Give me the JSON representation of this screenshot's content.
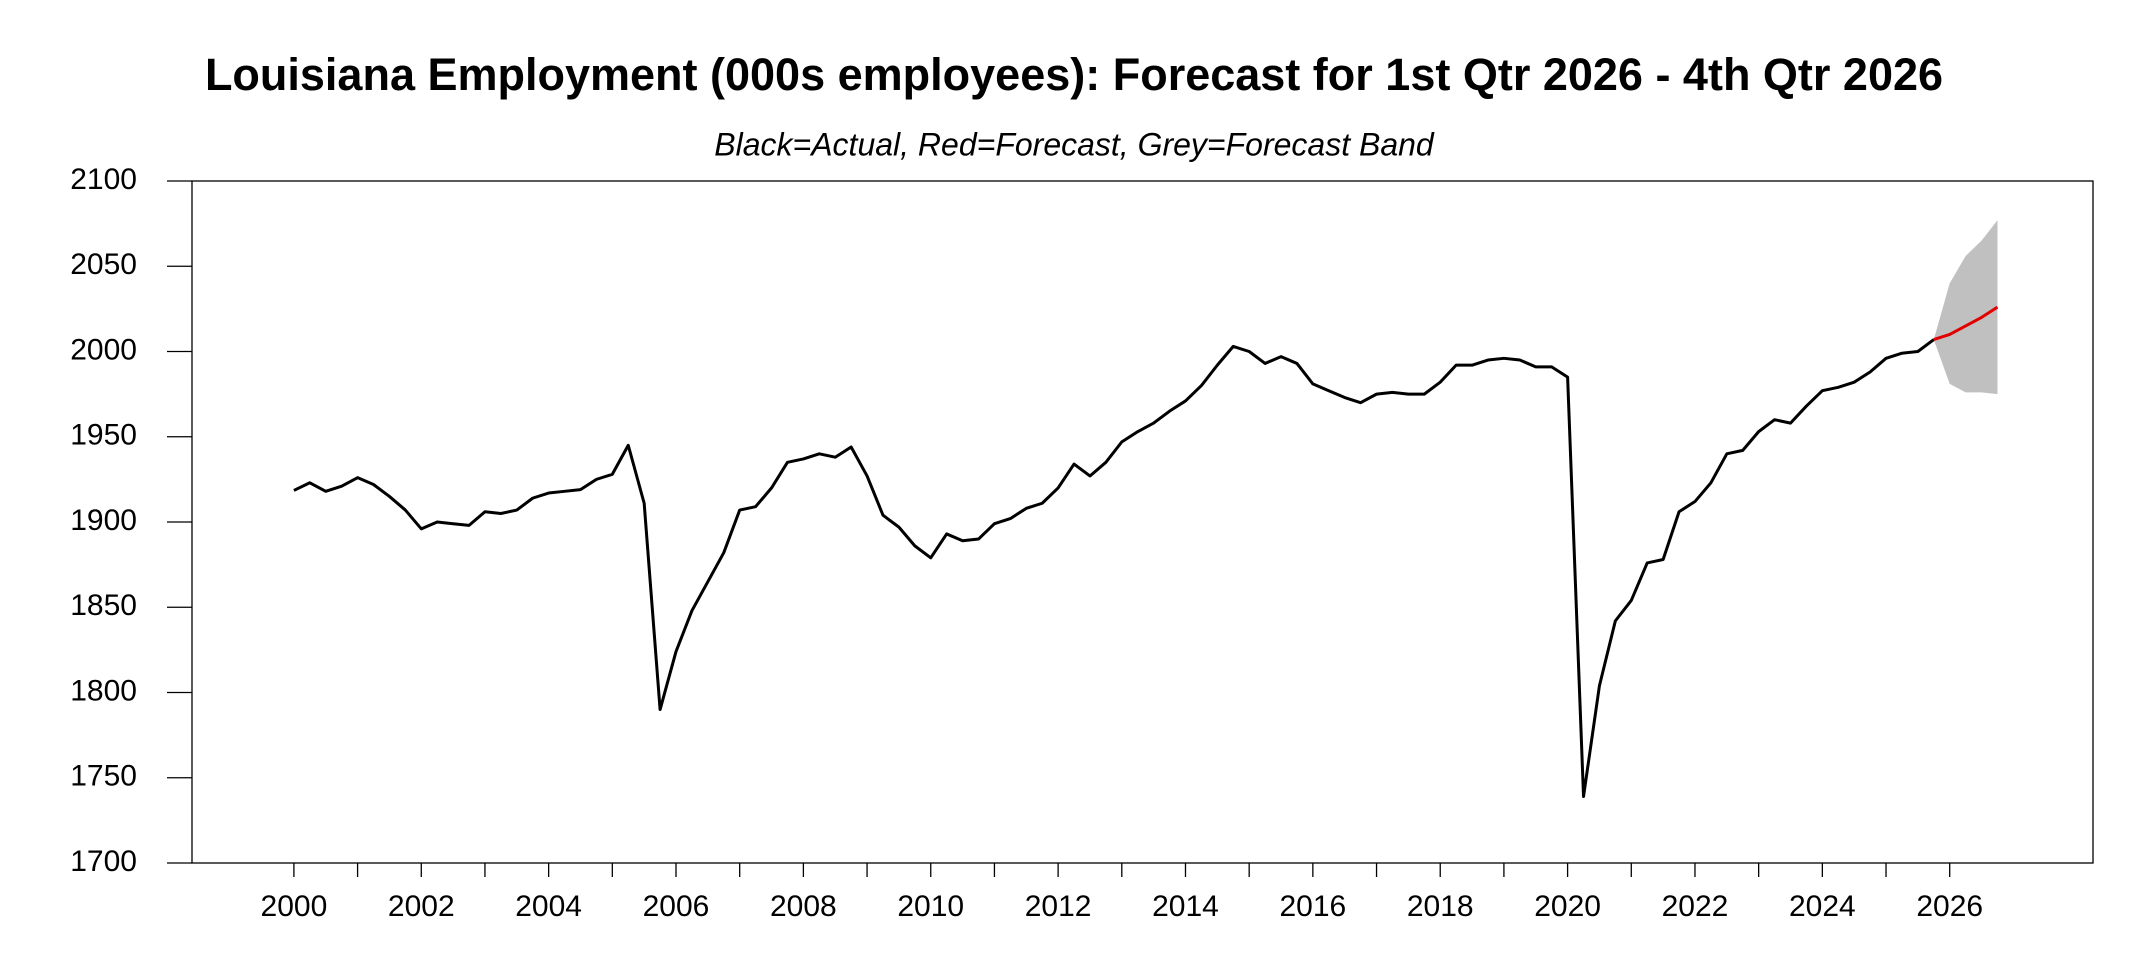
{
  "chart_data": {
    "type": "line",
    "title": "Louisiana Employment (000s employees): Forecast for 1st Qtr 2026 - 4th Qtr 2026",
    "subtitle": "Black=Actual, Red=Forecast, Grey=Forecast Band",
    "xlim": [
      1998.4,
      2028.25
    ],
    "xticks": [
      2000,
      2002,
      2004,
      2006,
      2008,
      2010,
      2012,
      2014,
      2016,
      2018,
      2020,
      2022,
      2024,
      2026
    ],
    "xminor_ticks": [
      2001,
      2003,
      2005,
      2007,
      2009,
      2011,
      2013,
      2015,
      2017,
      2019,
      2021,
      2023,
      2025
    ],
    "ylim": [
      1700,
      2100
    ],
    "yticks": [
      1700,
      1750,
      1800,
      1850,
      1900,
      1950,
      2000,
      2050,
      2100
    ],
    "grid": false,
    "band": {
      "color": "#c0c0c0",
      "x": [
        2025.75,
        2026,
        2026.25,
        2026.5,
        2026.75
      ],
      "upper": [
        2007,
        2040,
        2056,
        2065,
        2077
      ],
      "lower": [
        2007,
        1981,
        1976,
        1976,
        1975
      ]
    },
    "series": [
      {
        "color": "#000000",
        "x": [
          2000,
          2000.25,
          2000.5,
          2000.75,
          2001,
          2001.25,
          2001.5,
          2001.75,
          2002,
          2002.25,
          2002.5,
          2002.75,
          2003,
          2003.25,
          2003.5,
          2003.75,
          2004,
          2004.25,
          2004.5,
          2004.75,
          2005,
          2005.25,
          2005.5,
          2005.75,
          2006,
          2006.25,
          2006.5,
          2006.75,
          2007,
          2007.25,
          2007.5,
          2007.75,
          2008,
          2008.25,
          2008.5,
          2008.75,
          2009,
          2009.25,
          2009.5,
          2009.75,
          2010,
          2010.25,
          2010.5,
          2010.75,
          2011,
          2011.25,
          2011.5,
          2011.75,
          2012,
          2012.25,
          2012.5,
          2012.75,
          2013,
          2013.25,
          2013.5,
          2013.75,
          2014,
          2014.25,
          2014.5,
          2014.75,
          2015,
          2015.25,
          2015.5,
          2015.75,
          2016,
          2016.25,
          2016.5,
          2016.75,
          2017,
          2017.25,
          2017.5,
          2017.75,
          2018,
          2018.25,
          2018.5,
          2018.75,
          2019,
          2019.25,
          2019.5,
          2019.75,
          2020,
          2020.25,
          2020.5,
          2020.75,
          2021,
          2021.25,
          2021.5,
          2021.75,
          2022,
          2022.25,
          2022.5,
          2022.75,
          2023,
          2023.25,
          2023.5,
          2023.75,
          2024,
          2024.25,
          2024.5,
          2024.75,
          2025,
          2025.25,
          2025.5,
          2025.75
        ],
        "values": [
          1918.5,
          1923,
          1918,
          1921,
          1926,
          1922,
          1915,
          1907,
          1896,
          1900,
          1899,
          1898,
          1906,
          1905,
          1907,
          1914,
          1917,
          1918,
          1919,
          1925,
          1928,
          1945,
          1911,
          1790,
          1824,
          1848,
          1865,
          1882,
          1907,
          1909,
          1920,
          1935,
          1937,
          1940,
          1938,
          1944,
          1927,
          1904,
          1897,
          1886,
          1879,
          1893,
          1889,
          1890,
          1899,
          1902,
          1908,
          1911,
          1920,
          1934,
          1927,
          1935,
          1947,
          1953,
          1958,
          1965,
          1971,
          1980,
          1992,
          2003,
          2000,
          1993,
          1997,
          1993,
          1981,
          1977,
          1973,
          1970,
          1975,
          1976,
          1975,
          1975,
          1982,
          1992,
          1992,
          1995,
          1996,
          1995,
          1991,
          1991,
          1985,
          1739,
          1804,
          1842,
          1854,
          1876,
          1878,
          1906,
          1912,
          1923,
          1940,
          1942,
          1953,
          1960,
          1958,
          1968,
          1977,
          1979,
          1982,
          1988,
          1996,
          1999,
          2000,
          2007
        ]
      },
      {
        "color": "#e00000",
        "x": [
          2025.75,
          2026,
          2026.25,
          2026.5,
          2026.75
        ],
        "values": [
          2007,
          2010,
          2015,
          2020,
          2026
        ]
      }
    ]
  }
}
